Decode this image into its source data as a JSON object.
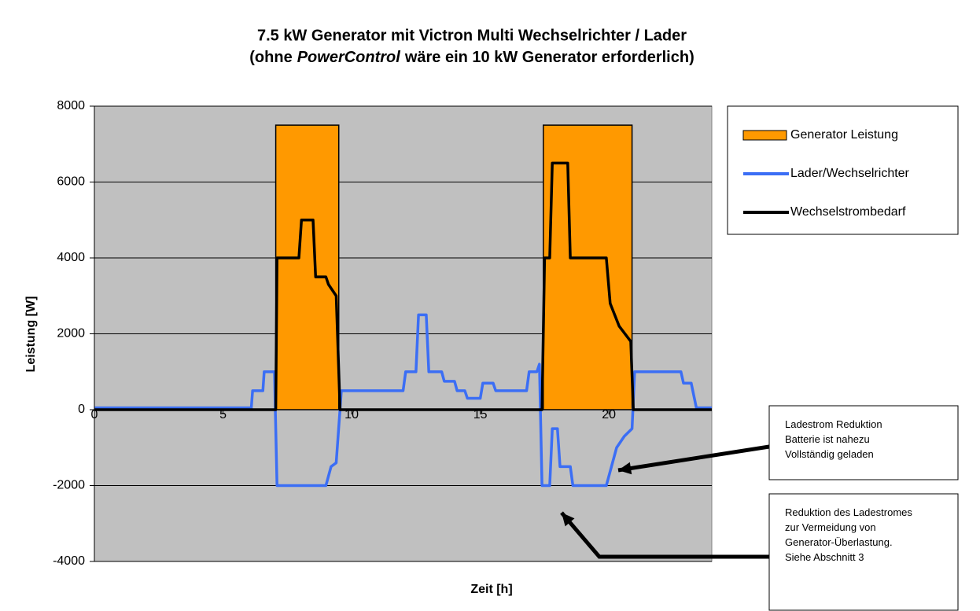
{
  "chart_data": {
    "type": "line",
    "title": [
      "7.5 kW Generator mit Victron Multi Wechselrichter / Lader",
      [
        "(ohne",
        "PowerControl",
        "wäre ein 10 kW Generator erforderlich)"
      ]
    ],
    "xlabel": "Zeit [h]",
    "ylabel": "Leistung [W]",
    "xlim": [
      0,
      24
    ],
    "xticks": [
      0,
      5,
      10,
      15,
      20
    ],
    "ylim": [
      -4000,
      8000
    ],
    "yticks": [
      -4000,
      -2000,
      0,
      2000,
      4000,
      6000,
      8000
    ],
    "grid": true,
    "legend": "right",
    "series": [
      {
        "name": "Generator Leistung",
        "type": "area",
        "color": "#ff9900",
        "x": [
          0,
          7.05,
          7.05,
          9.5,
          9.5,
          17.45,
          17.45,
          20.9,
          20.9,
          24
        ],
        "values": [
          0,
          0,
          7500,
          7500,
          0,
          0,
          7500,
          7500,
          0,
          0
        ]
      },
      {
        "name": "Lader/Wechselrichter",
        "type": "line",
        "color": "#3b6ef5",
        "x": [
          0,
          6.1,
          6.15,
          6.55,
          6.6,
          7.0,
          7.1,
          9.0,
          9.2,
          9.4,
          9.6,
          12.0,
          12.1,
          12.5,
          12.6,
          12.9,
          13.0,
          13.5,
          13.6,
          14.0,
          14.1,
          14.4,
          14.5,
          15.0,
          15.1,
          15.5,
          15.6,
          16.8,
          16.9,
          17.2,
          17.3,
          17.4,
          17.7,
          17.8,
          18.0,
          18.1,
          18.5,
          18.6,
          19.9,
          20.1,
          20.3,
          20.6,
          20.9,
          21.0,
          22.8,
          22.9,
          23.2,
          23.4,
          24
        ],
        "values": [
          50,
          50,
          500,
          500,
          1000,
          1000,
          -2000,
          -2000,
          -1500,
          -1400,
          500,
          500,
          1000,
          1000,
          2500,
          2500,
          1000,
          1000,
          750,
          750,
          500,
          500,
          300,
          300,
          700,
          700,
          500,
          500,
          1000,
          1000,
          1200,
          -2000,
          -2000,
          -500,
          -500,
          -1500,
          -1500,
          -2000,
          -2000,
          -1500,
          -1000,
          -700,
          -500,
          1000,
          1000,
          700,
          700,
          50,
          50
        ]
      },
      {
        "name": "Wechselstrombedarf",
        "type": "line",
        "color": "#000000",
        "x": [
          0,
          7.05,
          7.1,
          7.95,
          8.05,
          8.5,
          8.6,
          9.0,
          9.1,
          9.4,
          9.55,
          17.4,
          17.5,
          17.7,
          17.8,
          18.4,
          18.5,
          19.9,
          20.05,
          20.4,
          20.85,
          20.95,
          24
        ],
        "values": [
          0,
          0,
          4000,
          4000,
          5000,
          5000,
          3500,
          3500,
          3300,
          3000,
          0,
          0,
          4000,
          4000,
          6500,
          6500,
          4000,
          4000,
          2800,
          2200,
          1800,
          0,
          0
        ]
      }
    ],
    "annotations": [
      [
        "Ladestrom Reduktion",
        "Batterie ist nahezu",
        "Vollständig geladen"
      ],
      [
        "Reduktion des Ladestromes",
        "zur Vermeidung von",
        "Generator-Überlastung.",
        "Siehe Abschnitt 3"
      ]
    ]
  }
}
